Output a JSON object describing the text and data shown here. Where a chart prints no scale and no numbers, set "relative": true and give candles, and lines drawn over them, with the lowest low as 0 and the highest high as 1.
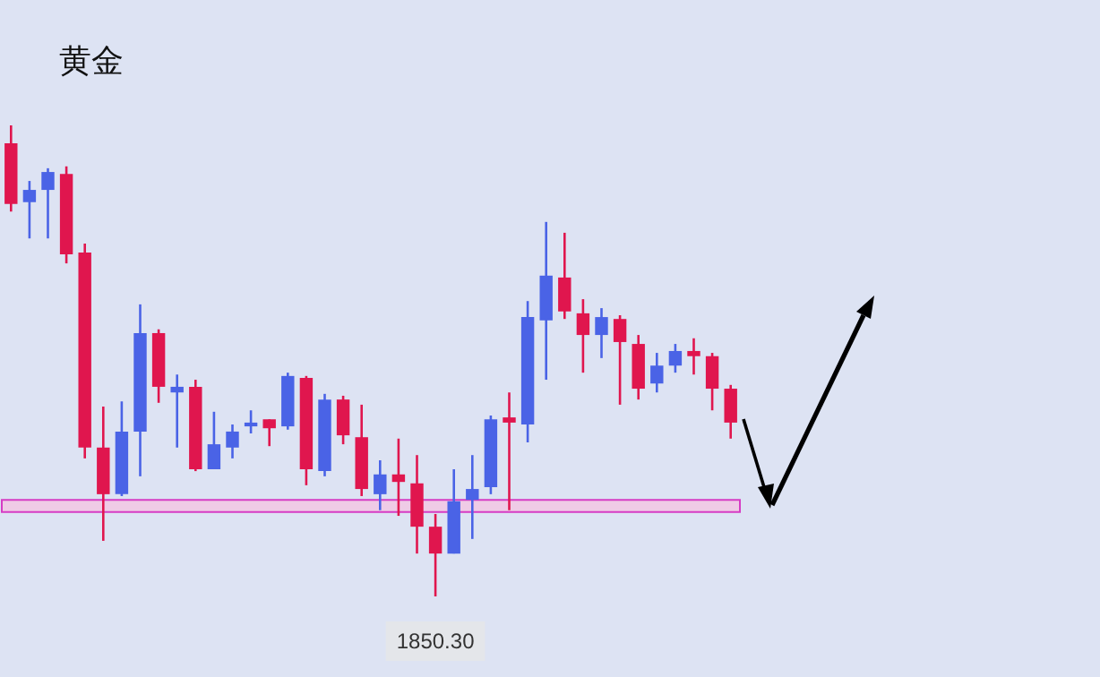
{
  "chart_data": {
    "type": "candlestick",
    "title": "黄金",
    "relative": true,
    "categories": [
      null,
      null,
      null,
      null,
      null,
      null,
      null,
      null,
      null,
      null,
      null,
      null,
      null,
      null,
      null,
      null,
      null,
      null,
      null,
      null,
      null,
      null,
      null,
      null,
      null,
      null,
      null,
      null,
      null,
      null,
      null,
      null,
      null,
      null,
      null,
      null,
      null,
      null,
      null,
      null
    ],
    "ohlc": [
      [
        0.962,
        1,
        0.817,
        0.833
      ],
      [
        0.837,
        0.882,
        0.76,
        0.863
      ],
      [
        0.863,
        0.909,
        0.76,
        0.901
      ],
      [
        0.897,
        0.913,
        0.707,
        0.726
      ],
      [
        0.73,
        0.749,
        0.293,
        0.316
      ],
      [
        0.316,
        0.403,
        0.118,
        0.217
      ],
      [
        0.217,
        0.414,
        0.213,
        0.35
      ],
      [
        0.35,
        0.62,
        0.255,
        0.559
      ],
      [
        0.559,
        0.567,
        0.411,
        0.445
      ],
      [
        0.433,
        0.471,
        0.316,
        0.445
      ],
      [
        0.445,
        0.46,
        0.266,
        0.27
      ],
      [
        0.27,
        0.392,
        0.27,
        0.323
      ],
      [
        0.316,
        0.365,
        0.293,
        0.35
      ],
      [
        0.361,
        0.395,
        0.346,
        0.369
      ],
      [
        0.376,
        0.376,
        0.319,
        0.357
      ],
      [
        0.361,
        0.475,
        0.354,
        0.468
      ],
      [
        0.464,
        0.468,
        0.236,
        0.27
      ],
      [
        0.266,
        0.43,
        0.255,
        0.418
      ],
      [
        0.418,
        0.426,
        0.323,
        0.342
      ],
      [
        0.338,
        0.407,
        0.213,
        0.228
      ],
      [
        0.217,
        0.289,
        0.183,
        0.259
      ],
      [
        0.259,
        0.335,
        0.171,
        0.243
      ],
      [
        0.24,
        0.3,
        0.091,
        0.148
      ],
      [
        0.148,
        0.175,
        0,
        0.091
      ],
      [
        0.091,
        0.27,
        0.091,
        0.202
      ],
      [
        0.205,
        0.3,
        0.122,
        0.228
      ],
      [
        0.232,
        0.384,
        0.217,
        0.376
      ],
      [
        0.38,
        0.433,
        0.183,
        0.369
      ],
      [
        0.365,
        0.627,
        0.327,
        0.593
      ],
      [
        0.586,
        0.795,
        0.46,
        0.681
      ],
      [
        0.677,
        0.772,
        0.589,
        0.605
      ],
      [
        0.601,
        0.631,
        0.475,
        0.555
      ],
      [
        0.555,
        0.612,
        0.506,
        0.593
      ],
      [
        0.589,
        0.597,
        0.407,
        0.54
      ],
      [
        0.536,
        0.555,
        0.418,
        0.441
      ],
      [
        0.452,
        0.517,
        0.433,
        0.49
      ],
      [
        0.49,
        0.536,
        0.475,
        0.521
      ],
      [
        0.521,
        0.548,
        0.471,
        0.51
      ],
      [
        0.51,
        0.517,
        0.395,
        0.441
      ],
      [
        0.441,
        0.449,
        0.335,
        0.369
      ]
    ],
    "colors": [
      "#e0164e",
      "#4a63e6",
      "#4a63e6",
      "#e0164e",
      "#e0164e",
      "#e0164e",
      "#4a63e6",
      "#4a63e6",
      "#e0164e",
      "#4a63e6",
      "#e0164e",
      "#4a63e6",
      "#4a63e6",
      "#4a63e6",
      "#e0164e",
      "#4a63e6",
      "#e0164e",
      "#4a63e6",
      "#e0164e",
      "#e0164e",
      "#4a63e6",
      "#e0164e",
      "#e0164e",
      "#e0164e",
      "#4a63e6",
      "#4a63e6",
      "#4a63e6",
      "#e0164e",
      "#4a63e6",
      "#4a63e6",
      "#e0164e",
      "#e0164e",
      "#4a63e6",
      "#e0164e",
      "#e0164e",
      "#4a63e6",
      "#4a63e6",
      "#e0164e",
      "#e0164e",
      "#e0164e"
    ],
    "bands": [
      {
        "axis": "y",
        "from": 0.179,
        "to": 0.205,
        "color": "#efcbe6"
      }
    ],
    "annotations": [
      "1850.30"
    ]
  }
}
